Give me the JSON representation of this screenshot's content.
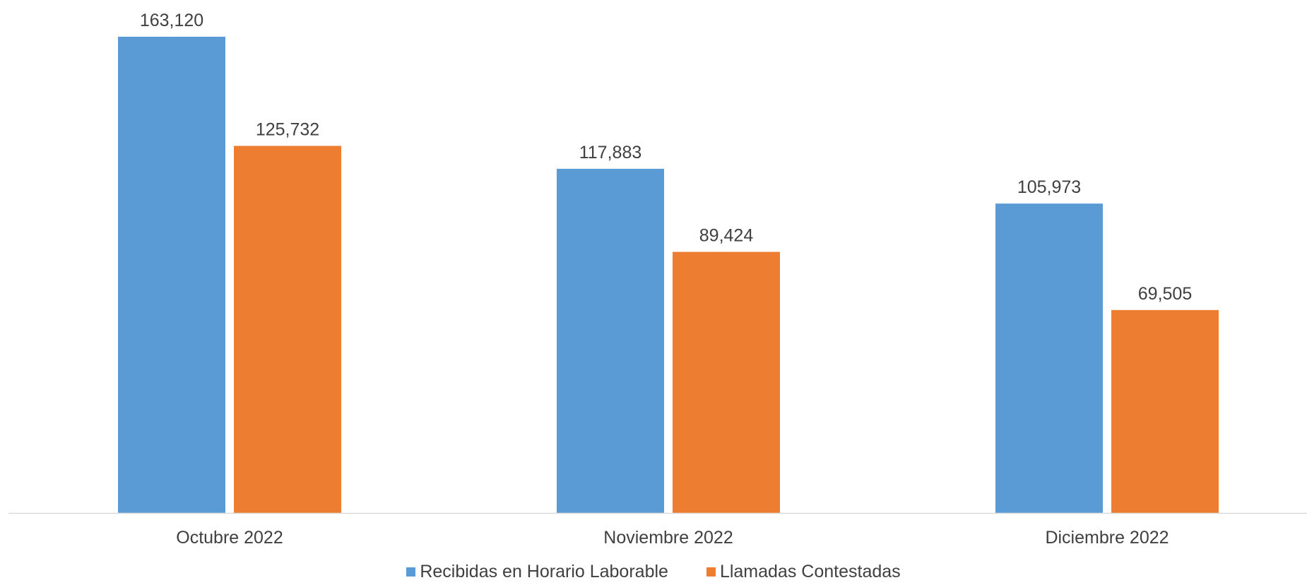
{
  "chart_data": {
    "type": "bar",
    "categories": [
      "Octubre 2022",
      "Noviembre 2022",
      "Diciembre 2022"
    ],
    "series": [
      {
        "name": "Recibidas en Horario Laborable",
        "color": "#5B9BD5",
        "values": [
          163120,
          117883,
          105973
        ],
        "labels": [
          "163,120",
          "117,883",
          "105,973"
        ]
      },
      {
        "name": "Llamadas Contestadas",
        "color": "#ED7D31",
        "values": [
          125732,
          89424,
          69505
        ],
        "labels": [
          "125,732",
          "89,424",
          "69,505"
        ]
      }
    ],
    "title": "",
    "xlabel": "",
    "ylabel": "",
    "ylim": [
      0,
      163120
    ],
    "grid": false,
    "legend_position": "bottom",
    "axis_color": "#D9D9D9"
  }
}
